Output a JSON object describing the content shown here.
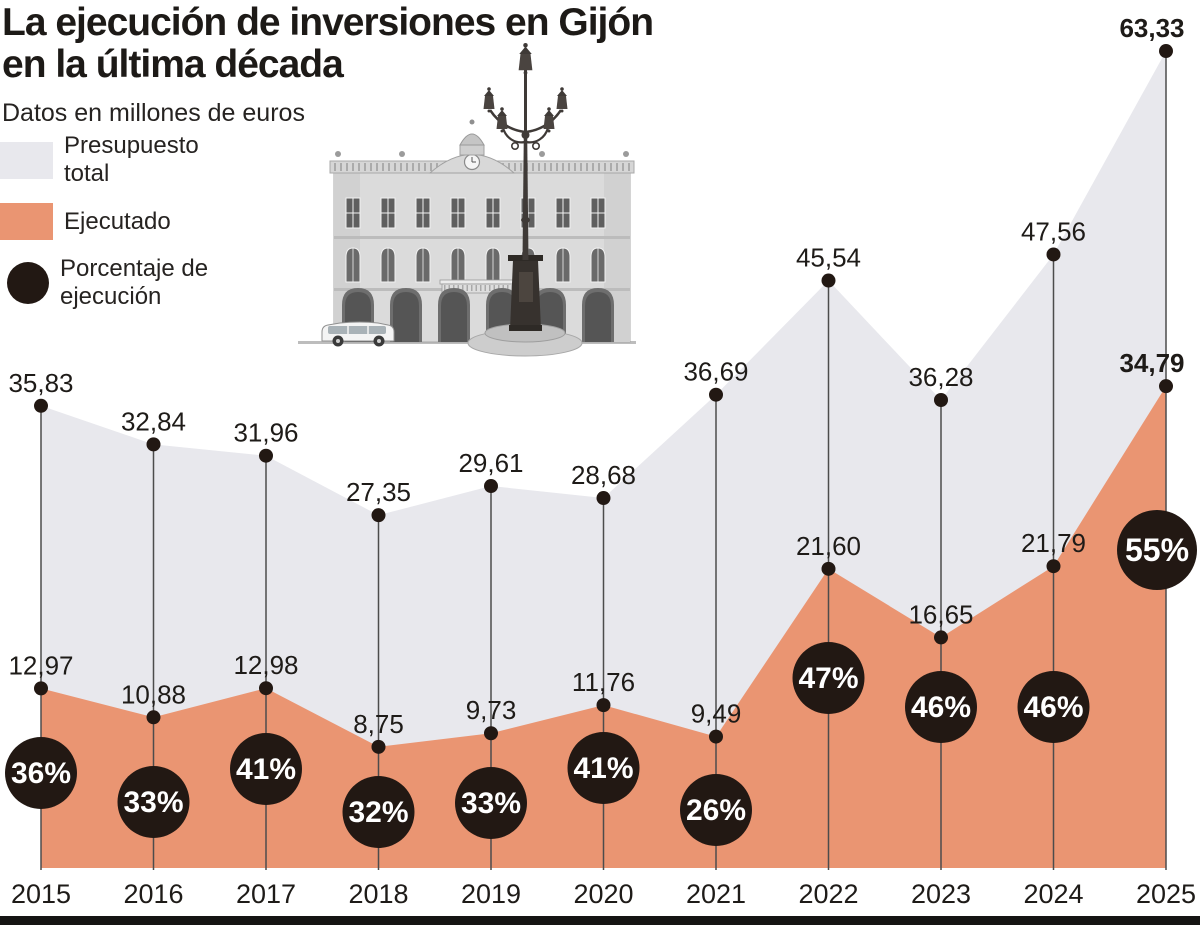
{
  "title": {
    "line1": "La ejecución de inversiones en Gijón",
    "line2": "en la última década"
  },
  "subtitle": "Datos en millones de euros",
  "legend": {
    "items": [
      {
        "label": "Presupuesto total",
        "color": "#e8e8ed",
        "shape": "square"
      },
      {
        "label": "Ejecutado",
        "color": "#ea9572",
        "shape": "square"
      },
      {
        "label": "Porcentaje de ejecución",
        "color": "#221813",
        "shape": "circle"
      }
    ]
  },
  "chart_data": {
    "type": "area",
    "title": "La ejecución de inversiones en Gijón en la última década",
    "subtitle": "Datos en millones de euros",
    "unit": "millones de euros",
    "categories": [
      "2015",
      "2016",
      "2017",
      "2018",
      "2019",
      "2020",
      "2021",
      "2022",
      "2023",
      "2024",
      "2025"
    ],
    "series": [
      {
        "name": "Presupuesto total",
        "color": "#e8e8ed",
        "values": [
          35.83,
          32.84,
          31.96,
          27.35,
          29.61,
          28.68,
          36.69,
          45.54,
          36.28,
          47.56,
          63.33
        ],
        "labels": [
          "35,83",
          "32,84",
          "31,96",
          "27,35",
          "29,61",
          "28,68",
          "36,69",
          "45,54",
          "36,28",
          "47,56",
          "63,33"
        ]
      },
      {
        "name": "Ejecutado",
        "color": "#ea9572",
        "values": [
          12.97,
          10.88,
          12.98,
          8.75,
          9.73,
          11.76,
          9.49,
          21.6,
          16.65,
          21.79,
          34.79
        ],
        "labels": [
          "12,97",
          "10,88",
          "12,98",
          "8,75",
          "9,73",
          "11,76",
          "9,49",
          "21,60",
          "16,65",
          "21,79",
          "34,79"
        ]
      }
    ],
    "percentages": {
      "name": "Porcentaje de ejecución",
      "values": [
        36,
        33,
        41,
        32,
        33,
        41,
        26,
        47,
        46,
        46,
        55
      ],
      "labels": [
        "36%",
        "33%",
        "41%",
        "32%",
        "33%",
        "41%",
        "26%",
        "47%",
        "46%",
        "46%",
        "55%"
      ],
      "badge_color": "#221813",
      "text_color": "#ffffff"
    },
    "emphasis_category": "2025",
    "ylim": [
      0,
      65
    ],
    "grid": false,
    "legend_position": "top-left",
    "colors": {
      "dot": "#221813",
      "leader_line": "#4c4c4c",
      "label_text": "#1e1b18"
    }
  }
}
